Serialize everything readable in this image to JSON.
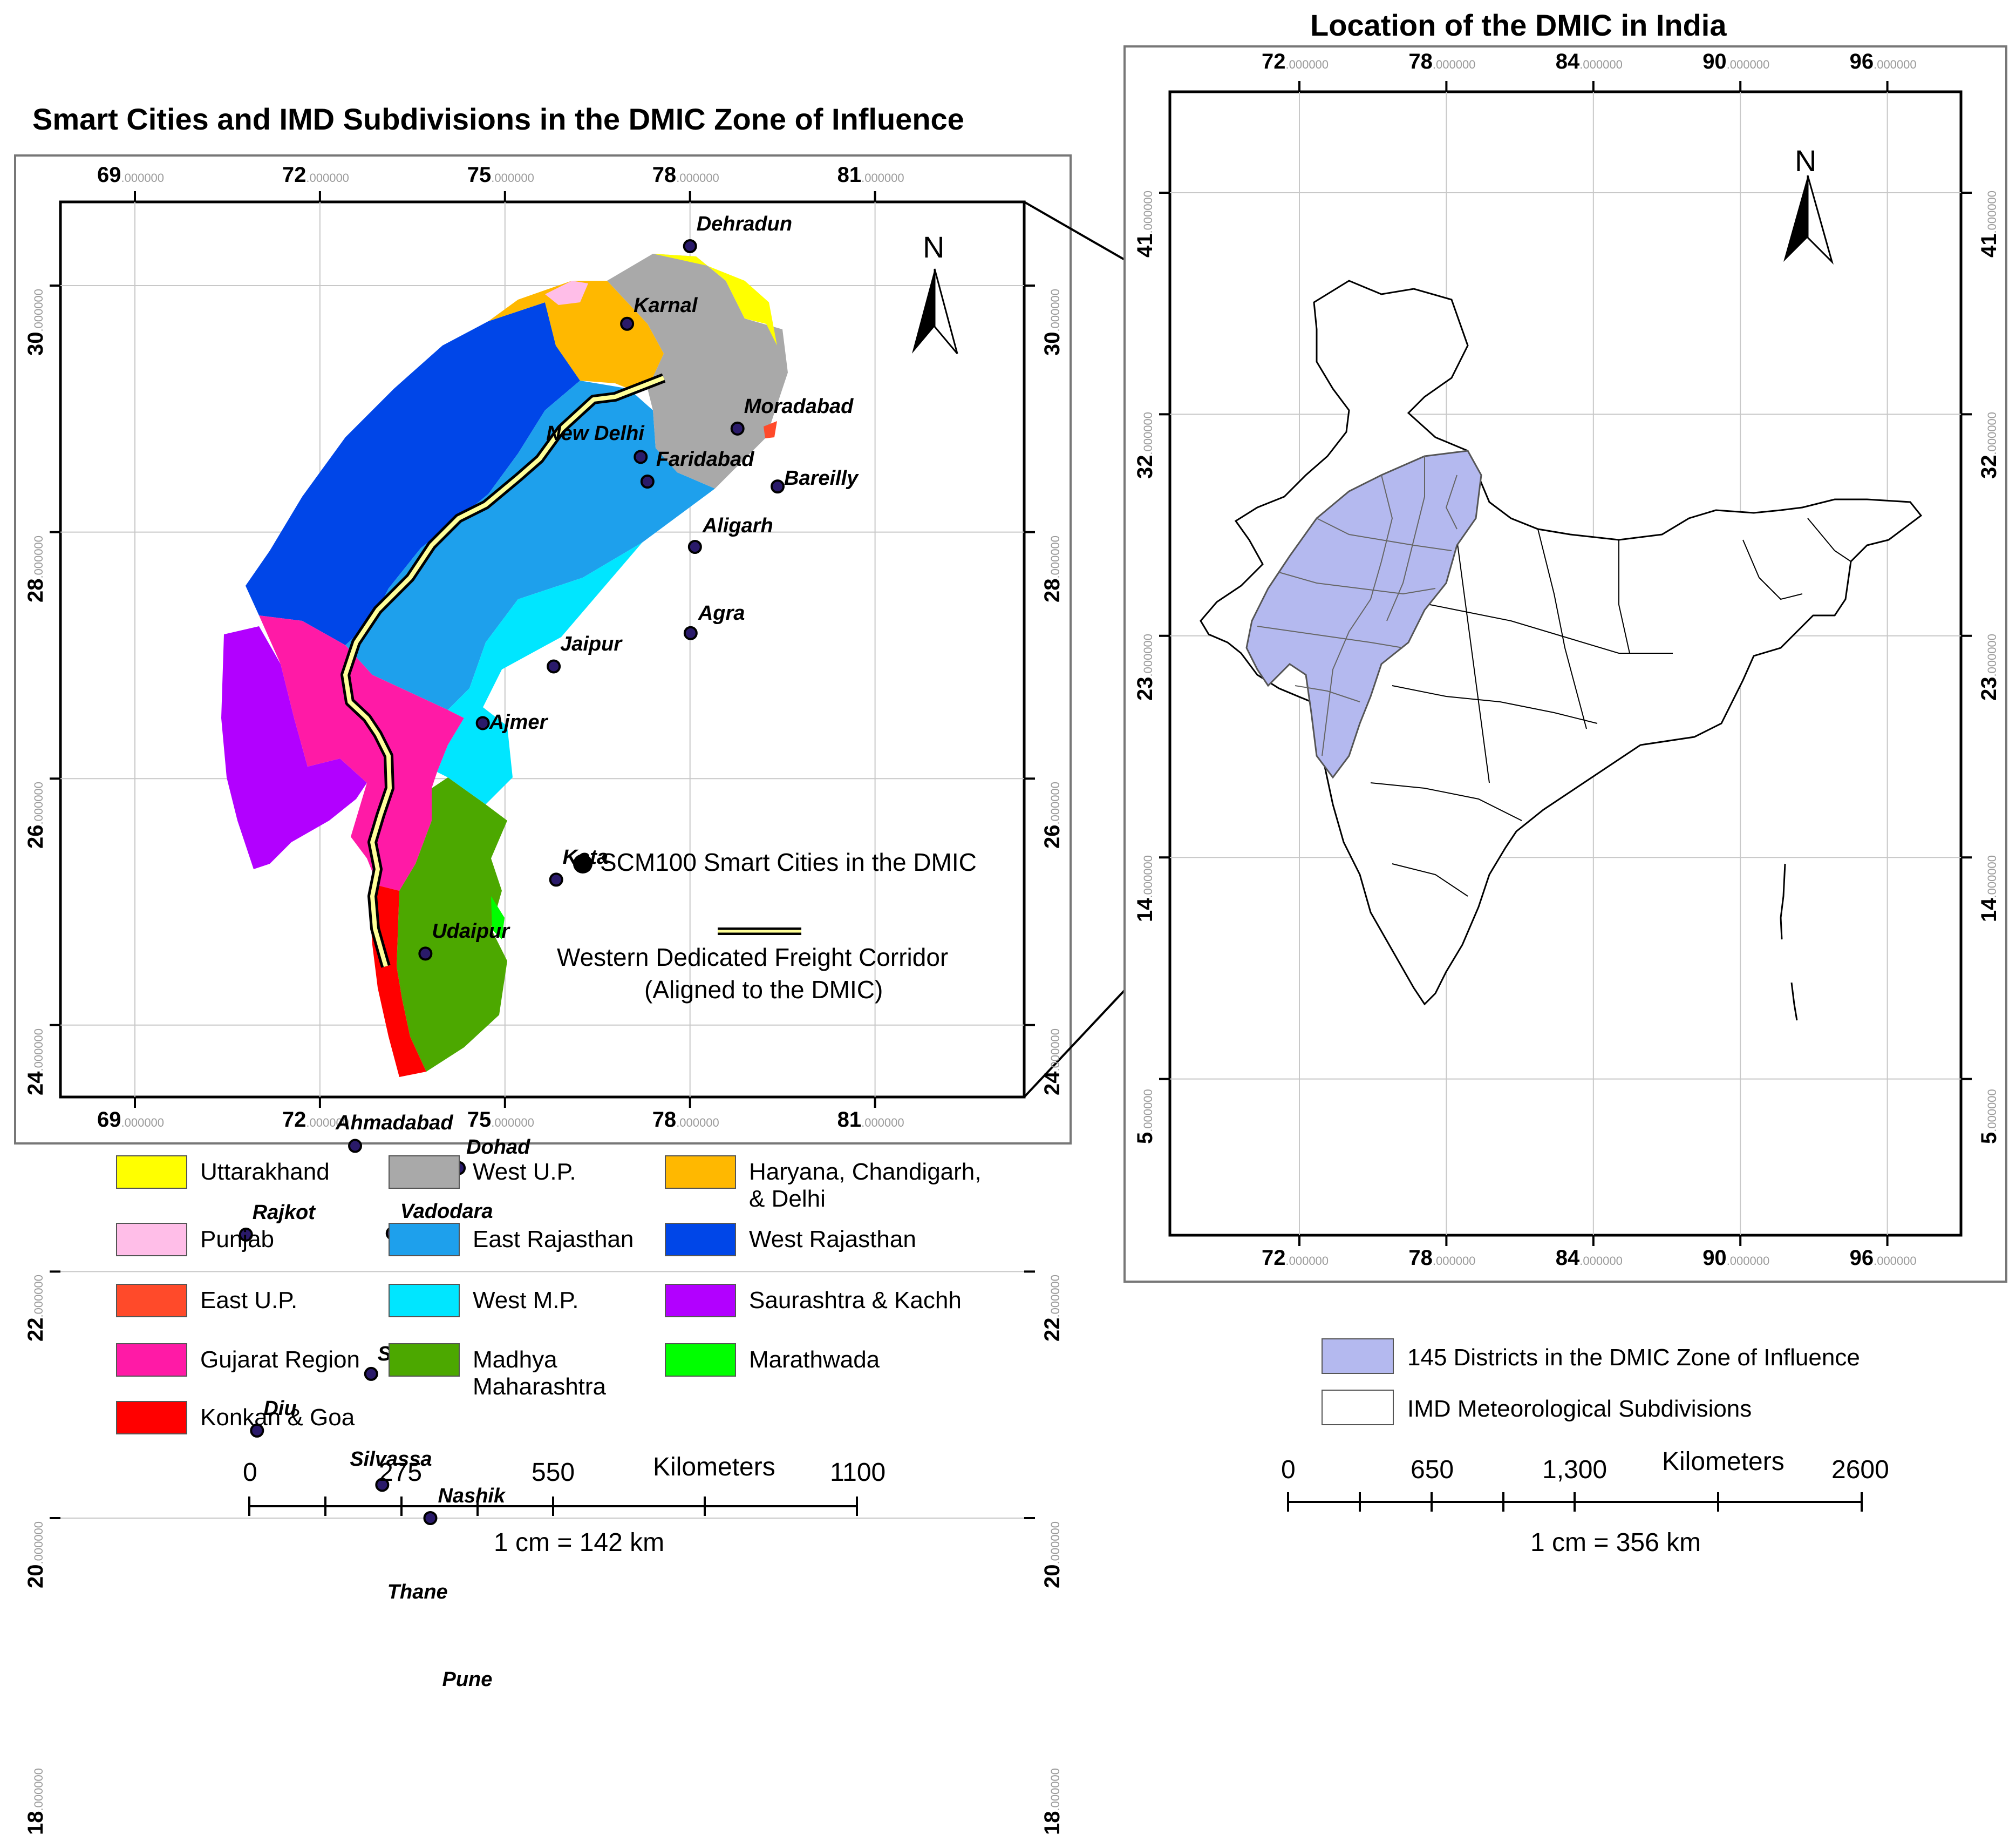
{
  "left_map": {
    "title": "Smart Cities and IMD Subdivisions in the DMIC Zone of Influence",
    "lon_ticks": [
      {
        "deg": "69",
        "dec": ".000000"
      },
      {
        "deg": "72",
        "dec": ".000000"
      },
      {
        "deg": "75",
        "dec": ".000000"
      },
      {
        "deg": "78",
        "dec": ".000000"
      },
      {
        "deg": "81",
        "dec": ".000000"
      }
    ],
    "lat_ticks": [
      {
        "deg": "30",
        "dec": ".000000"
      },
      {
        "deg": "28",
        "dec": ".000000"
      },
      {
        "deg": "26",
        "dec": ".000000"
      },
      {
        "deg": "24",
        "dec": ".000000"
      },
      {
        "deg": "22",
        "dec": ".000000"
      },
      {
        "deg": "20",
        "dec": ".000000"
      },
      {
        "deg": "18",
        "dec": ".000000"
      }
    ],
    "north_label": "N",
    "cities": [
      {
        "name": "Dehradun",
        "lon": 78.0,
        "lat": 30.32
      },
      {
        "name": "Karnal",
        "lon": 76.98,
        "lat": 29.69
      },
      {
        "name": "New Delhi",
        "lon": 77.2,
        "lat": 28.61
      },
      {
        "name": "Faridabad",
        "lon": 77.31,
        "lat": 28.41
      },
      {
        "name": "Moradabad",
        "lon": 78.77,
        "lat": 28.84
      },
      {
        "name": "Bareilly",
        "lon": 79.42,
        "lat": 28.37
      },
      {
        "name": "Aligarh",
        "lon": 78.08,
        "lat": 27.88
      },
      {
        "name": "Agra",
        "lon": 78.01,
        "lat": 27.18
      },
      {
        "name": "Jaipur",
        "lon": 75.79,
        "lat": 26.91
      },
      {
        "name": "Ajmer",
        "lon": 74.64,
        "lat": 26.45
      },
      {
        "name": "Kota",
        "lon": 75.83,
        "lat": 25.18
      },
      {
        "name": "Udaipur",
        "lon": 73.71,
        "lat": 24.58
      },
      {
        "name": "Ahmadabad",
        "lon": 72.57,
        "lat": 23.02
      },
      {
        "name": "Dohad",
        "lon": 74.25,
        "lat": 22.84
      },
      {
        "name": "Vadodara",
        "lon": 73.18,
        "lat": 22.31
      },
      {
        "name": "Rajkot",
        "lon": 70.8,
        "lat": 22.3
      },
      {
        "name": "Surat",
        "lon": 72.83,
        "lat": 21.17
      },
      {
        "name": "Diu",
        "lon": 70.98,
        "lat": 20.71
      },
      {
        "name": "Silvassa",
        "lon": 73.01,
        "lat": 20.27
      },
      {
        "name": "Nashik",
        "lon": 73.79,
        "lat": 20.0
      },
      {
        "name": "Thane",
        "lon": 72.97,
        "lat": 19.22
      },
      {
        "name": "Pune",
        "lon": 73.86,
        "lat": 18.52
      }
    ],
    "smart_cities_label": "SCM100 Smart Cities in the DMIC",
    "corridor_label_line1": "Western Dedicated Freight Corridor",
    "corridor_label_line2": "(Aligned to the DMIC)"
  },
  "legend": [
    {
      "label": "Uttarakhand",
      "color": "#ffff00"
    },
    {
      "label": "West U.P.",
      "color": "#a9a9a9"
    },
    {
      "label": "Haryana, Chandigarh, & Delhi",
      "color": "#ffb800"
    },
    {
      "label": "Punjab",
      "color": "#ffbee8"
    },
    {
      "label": "East Rajasthan",
      "color": "#1ea0ec"
    },
    {
      "label": "West Rajasthan",
      "color": "#0046e8"
    },
    {
      "label": "East U.P.",
      "color": "#ff4a2a"
    },
    {
      "label": "West M.P.",
      "color": "#00e6ff"
    },
    {
      "label": "Saurashtra & Kachh",
      "color": "#b200ff"
    },
    {
      "label": "Gujarat Region",
      "color": "#ff1aa6"
    },
    {
      "label": "Madhya Maharashtra",
      "color": "#4ca800"
    },
    {
      "label": "Marathwada",
      "color": "#00ff00"
    },
    {
      "label": "Konkan & Goa",
      "color": "#ff0000"
    }
  ],
  "left_scale": {
    "labels": [
      "0",
      "275",
      "550",
      "1100"
    ],
    "unit": "Kilometers",
    "ratio": "1 cm = 142 km"
  },
  "right_map": {
    "title": "Location of the DMIC in India",
    "lon_ticks": [
      {
        "deg": "72",
        "dec": ".000000"
      },
      {
        "deg": "78",
        "dec": ".000000"
      },
      {
        "deg": "84",
        "dec": ".000000"
      },
      {
        "deg": "90",
        "dec": ".000000"
      },
      {
        "deg": "96",
        "dec": ".000000"
      }
    ],
    "lat_ticks": [
      {
        "deg": "41",
        "dec": ".000000"
      },
      {
        "deg": "32",
        "dec": ".000000"
      },
      {
        "deg": "23",
        "dec": ".000000"
      },
      {
        "deg": "14",
        "dec": ".000000"
      },
      {
        "deg": "5",
        "dec": ".000000"
      }
    ],
    "north_label": "N",
    "legend": [
      {
        "label": "145 Districts in the DMIC Zone of Influence",
        "color": "#b4b9ef"
      },
      {
        "label": "IMD Meteorological Subdivisions",
        "color": "#ffffff"
      }
    ]
  },
  "right_scale": {
    "labels": [
      "0",
      "650",
      "1,300",
      "2600"
    ],
    "unit": "Kilometers",
    "ratio": "1 cm = 356 km"
  }
}
